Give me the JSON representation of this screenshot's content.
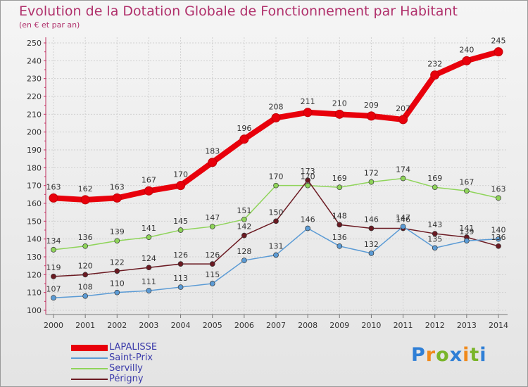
{
  "header": {
    "title": "Evolution de la Dotation Globale de Fonctionnement par Habitant",
    "subtitle": "(en € et par an)"
  },
  "logo": {
    "text": "Proxiti"
  },
  "chart_data": {
    "type": "line",
    "title": "Evolution de la Dotation Globale de Fonctionnement par Habitant",
    "subtitle": "(en € et par an)",
    "xlabel": "",
    "ylabel": "",
    "ylim": [
      100,
      250
    ],
    "yticks": [
      100,
      110,
      120,
      130,
      140,
      150,
      160,
      170,
      180,
      190,
      200,
      210,
      220,
      230,
      240,
      250
    ],
    "grid": true,
    "legend_position": "bottom-left",
    "categories": [
      "2000",
      "2001",
      "2002",
      "2003",
      "2004",
      "2005",
      "2006",
      "2007",
      "2008",
      "2009",
      "2010",
      "2011",
      "2012",
      "2013",
      "2014"
    ],
    "series": [
      {
        "name": "LAPALISSE",
        "color": "#e8000b",
        "values": [
          163,
          162,
          163,
          167,
          170,
          183,
          196,
          208,
          211,
          210,
          209,
          207,
          232,
          240,
          245
        ]
      },
      {
        "name": "Saint-Prix",
        "color": "#5b9bd5",
        "values": [
          107,
          108,
          110,
          111,
          113,
          115,
          128,
          131,
          146,
          136,
          132,
          147,
          135,
          139,
          140
        ]
      },
      {
        "name": "Servilly",
        "color": "#8fd45a",
        "values": [
          134,
          136,
          139,
          141,
          145,
          147,
          151,
          170,
          170,
          169,
          172,
          174,
          169,
          167,
          163
        ]
      },
      {
        "name": "Périgny",
        "color": "#6b1a22",
        "values": [
          119,
          120,
          122,
          124,
          126,
          126,
          142,
          150,
          173,
          148,
          146,
          146,
          143,
          141,
          136
        ]
      }
    ]
  }
}
